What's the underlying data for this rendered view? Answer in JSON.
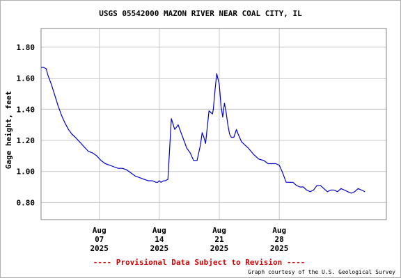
{
  "chart_data": {
    "type": "line",
    "title": "USGS 05542000 MAZON RIVER NEAR COAL CITY, IL",
    "ylabel": "Gage height, feet",
    "xlabel": "",
    "ylim": [
      0.69,
      1.92
    ],
    "xlim": [
      0,
      40.3
    ],
    "grid": true,
    "y_ticks": [
      {
        "value": 0.8,
        "label": "0.80"
      },
      {
        "value": 1.0,
        "label": "1.00"
      },
      {
        "value": 1.2,
        "label": "1.20"
      },
      {
        "value": 1.4,
        "label": "1.40"
      },
      {
        "value": 1.6,
        "label": "1.60"
      },
      {
        "value": 1.8,
        "label": "1.80"
      }
    ],
    "x_ticks": [
      {
        "value": 6.8,
        "month": "Aug",
        "day": "07",
        "year": "2025"
      },
      {
        "value": 13.8,
        "month": "Aug",
        "day": "14",
        "year": "2025"
      },
      {
        "value": 20.8,
        "month": "Aug",
        "day": "21",
        "year": "2025"
      },
      {
        "value": 27.8,
        "month": "Aug",
        "day": "28",
        "year": "2025"
      }
    ],
    "series": [
      {
        "name": "",
        "color": "#0000cc",
        "x": [
          0,
          0.3,
          0.6,
          0.8,
          1.2,
          1.6,
          2.0,
          2.4,
          2.8,
          3.2,
          3.6,
          4.0,
          4.5,
          5.0,
          5.5,
          6.0,
          6.5,
          7.0,
          7.5,
          8.0,
          8.5,
          9.0,
          9.5,
          10.0,
          10.5,
          11.0,
          11.5,
          12.0,
          12.5,
          13.0,
          13.4,
          13.6,
          13.8,
          14.0,
          14.3,
          14.5,
          14.8,
          15.2,
          15.6,
          16.0,
          16.4,
          16.8,
          17.0,
          17.4,
          17.8,
          18.2,
          18.6,
          18.8,
          19.0,
          19.2,
          19.6,
          20.0,
          20.1,
          20.3,
          20.5,
          20.8,
          21.0,
          21.2,
          21.4,
          21.6,
          21.8,
          22.0,
          22.2,
          22.5,
          22.8,
          23.0,
          23.4,
          23.8,
          24.2,
          24.8,
          25.4,
          26.0,
          26.5,
          27.0,
          27.4,
          27.8,
          28.2,
          28.6,
          29.0,
          29.4,
          29.8,
          30.2,
          30.6,
          31.0,
          31.4,
          31.8,
          32.2,
          32.6,
          33.0,
          33.4,
          33.8,
          34.2,
          34.6,
          35.0,
          35.4,
          35.8,
          36.2,
          36.6,
          37.0,
          37.4,
          37.8
        ],
        "y": [
          1.67,
          1.67,
          1.66,
          1.62,
          1.56,
          1.49,
          1.42,
          1.36,
          1.31,
          1.27,
          1.24,
          1.22,
          1.19,
          1.16,
          1.13,
          1.12,
          1.1,
          1.07,
          1.05,
          1.04,
          1.03,
          1.02,
          1.02,
          1.01,
          0.99,
          0.97,
          0.96,
          0.95,
          0.94,
          0.94,
          0.93,
          0.93,
          0.94,
          0.93,
          0.94,
          0.94,
          0.95,
          1.34,
          1.27,
          1.3,
          1.24,
          1.18,
          1.15,
          1.12,
          1.07,
          1.07,
          1.17,
          1.25,
          1.22,
          1.18,
          1.39,
          1.37,
          1.4,
          1.52,
          1.63,
          1.56,
          1.42,
          1.35,
          1.44,
          1.38,
          1.3,
          1.24,
          1.22,
          1.22,
          1.27,
          1.24,
          1.19,
          1.17,
          1.15,
          1.11,
          1.08,
          1.07,
          1.05,
          1.05,
          1.05,
          1.04,
          0.99,
          0.93,
          0.93,
          0.93,
          0.91,
          0.9,
          0.9,
          0.88,
          0.87,
          0.88,
          0.91,
          0.91,
          0.89,
          0.87,
          0.88,
          0.88,
          0.87,
          0.89,
          0.88,
          0.87,
          0.86,
          0.87,
          0.89,
          0.88,
          0.87
        ]
      }
    ]
  },
  "footer": {
    "notice": "---- Provisional Data Subject to Revision ----",
    "credit": "Graph courtesy of the U.S. Geological Survey"
  }
}
